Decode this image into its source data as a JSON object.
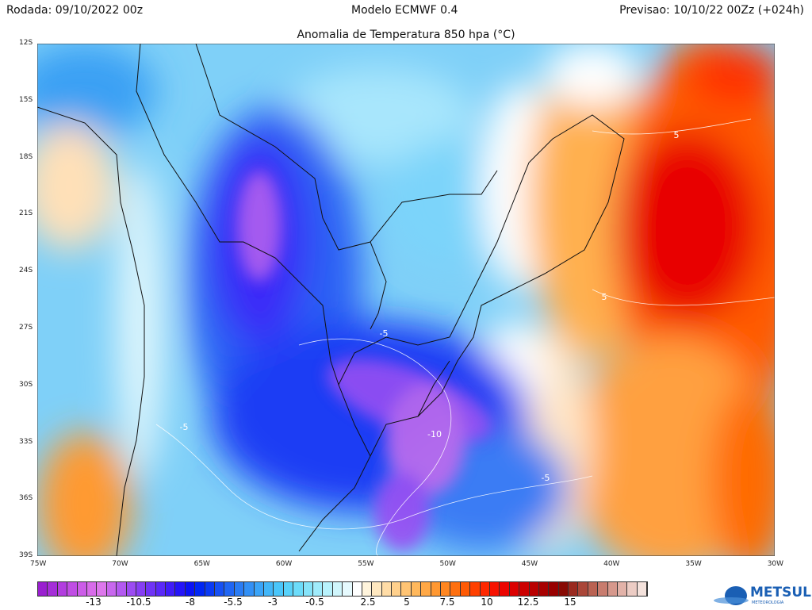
{
  "header": {
    "run": "Rodada: 09/10/2022 00z",
    "model": "Modelo ECMWF 0.4",
    "forecast": "Previsao: 10/10/22 00Zz (+024h)"
  },
  "title": "Anomalia de Temperatura 850 hpa (°C)",
  "lat_ticks": [
    "12S",
    "15S",
    "18S",
    "21S",
    "24S",
    "27S",
    "30S",
    "33S",
    "36S",
    "39S"
  ],
  "lon_ticks": [
    "75W",
    "70W",
    "65W",
    "60W",
    "55W",
    "50W",
    "45W",
    "40W",
    "35W",
    "30W"
  ],
  "contour_labels": [
    "5",
    "5",
    "-5",
    "-5",
    "-5",
    "-10"
  ],
  "colorbar": {
    "labels": [
      "-13",
      "-10.5",
      "-8",
      "-5.5",
      "-3",
      "-0.5",
      "2.5",
      "5",
      "7.5",
      "10",
      "12.5",
      "15"
    ],
    "colors": [
      "#9a1fd0",
      "#a52ed8",
      "#b23ddf",
      "#c04de4",
      "#cc5ce8",
      "#d86bea",
      "#dd77ec",
      "#c867ee",
      "#b359f0",
      "#9c4bf2",
      "#863ef4",
      "#6f33f6",
      "#5a28f8",
      "#401cf8",
      "#2414f8",
      "#0a12f4",
      "#0026f4",
      "#0a3af4",
      "#1650f4",
      "#2066f4",
      "#2a7cf4",
      "#3290f6",
      "#3aa4f8",
      "#42b6f8",
      "#4ac6fa",
      "#58d2fa",
      "#6cdcfa",
      "#86e4fa",
      "#a0ecfc",
      "#b8f2fc",
      "#d0f6fc",
      "#e6fafe",
      "#ffffff",
      "#fff4dc",
      "#ffe8c0",
      "#ffdca6",
      "#ffd08c",
      "#ffc474",
      "#ffb85c",
      "#ffa846",
      "#ff9832",
      "#ff8620",
      "#ff7010",
      "#ff5a04",
      "#ff4000",
      "#ff2800",
      "#f81200",
      "#ec0400",
      "#dc0000",
      "#cc0000",
      "#ba0000",
      "#a80000",
      "#980000",
      "#880a04",
      "#9a2a20",
      "#aa4638",
      "#ba6252",
      "#c87c6e",
      "#d6988c",
      "#e2b2a8",
      "#ecccc4",
      "#f4e2dc"
    ]
  },
  "logo": {
    "name": "METSUL",
    "sub": "METEOROLOGIA"
  }
}
